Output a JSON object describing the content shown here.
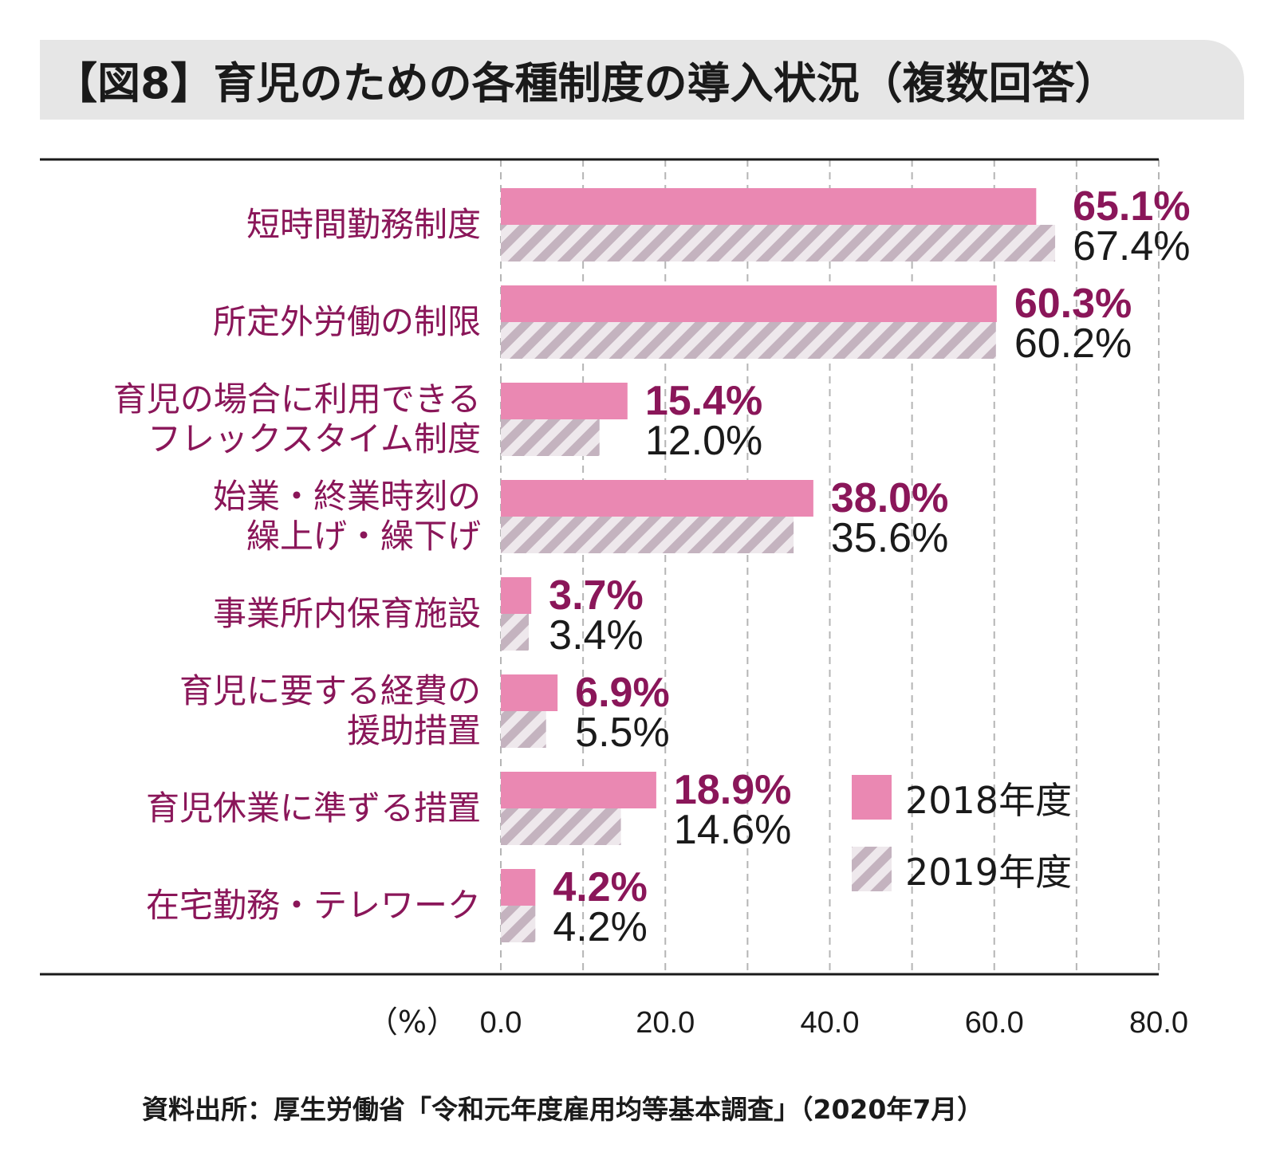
{
  "title": "【図8】育児のための各種制度の導入状況（複数回答）",
  "source": "資料出所：厚生労働省「令和元年度雇用均等基本調査」（2020年7月）",
  "colors": {
    "series2018": "#ea88b2",
    "series2019_stripe": "#c4b3bf",
    "series2019_bg": "#eee8ec",
    "label2018": "#8a1659",
    "label2019": "#1a1a1a",
    "category": "#8a1659"
  },
  "chart_data": {
    "type": "bar",
    "orientation": "horizontal",
    "categories": [
      [
        "短時間勤務制度"
      ],
      [
        "所定外労働の制限"
      ],
      [
        "育児の場合に利用できる",
        "フレックスタイム制度"
      ],
      [
        "始業・終業時刻の",
        "繰上げ・繰下げ"
      ],
      [
        "事業所内保育施設"
      ],
      [
        "育児に要する経費の",
        "援助措置"
      ],
      [
        "育児休業に準ずる措置"
      ],
      [
        "在宅勤務・テレワーク"
      ]
    ],
    "series": [
      {
        "name": "2018年度",
        "values": [
          65.1,
          60.3,
          15.4,
          38.0,
          3.7,
          6.9,
          18.9,
          4.2
        ],
        "labels": [
          "65.1%",
          "60.3%",
          "15.4%",
          "38.0%",
          "3.7%",
          "6.9%",
          "18.9%",
          "4.2%"
        ]
      },
      {
        "name": "2019年度",
        "values": [
          67.4,
          60.2,
          12.0,
          35.6,
          3.4,
          5.5,
          14.6,
          4.2
        ],
        "labels": [
          "67.4%",
          "60.2%",
          "12.0%",
          "35.6%",
          "3.4%",
          "5.5%",
          "14.6%",
          "4.2%"
        ]
      }
    ],
    "xlabel": "（%）",
    "xlim": [
      0,
      80
    ],
    "xticks": [
      0,
      20,
      40,
      60,
      80
    ],
    "xtick_labels": [
      "0.0",
      "20.0",
      "40.0",
      "60.0",
      "80.0"
    ],
    "minor_gridlines": [
      10,
      30,
      50,
      70
    ],
    "grid": true,
    "legend_position": "bottom-right"
  }
}
